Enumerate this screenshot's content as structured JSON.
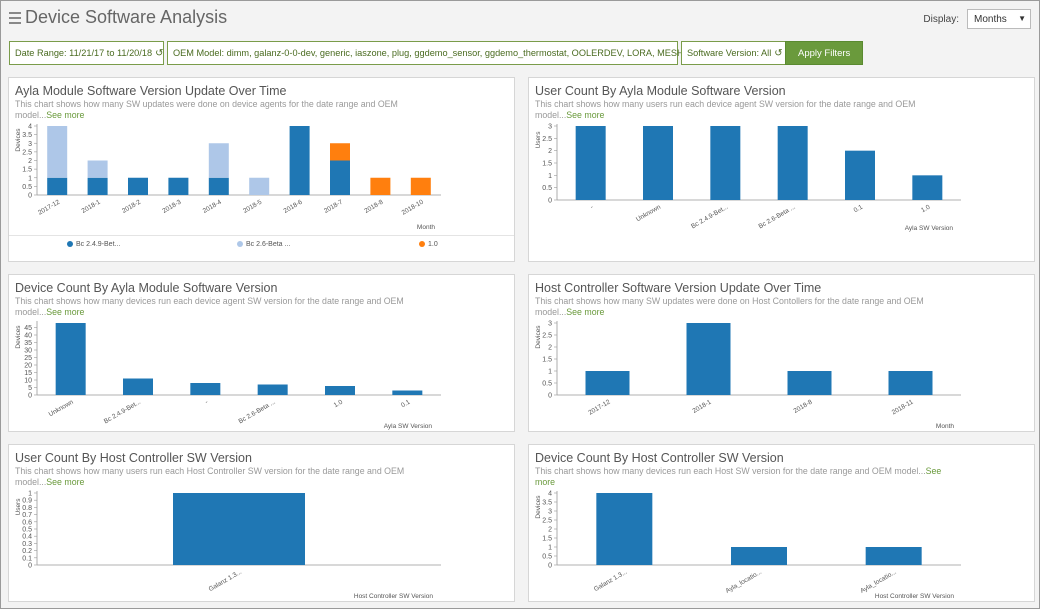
{
  "header": {
    "title": "Device Software Analysis",
    "display_label": "Display:",
    "display_value": "Months"
  },
  "filters": {
    "date_range": "Date Range: 11/21/17 to 11/20/18",
    "oem_model": "OEM Model: dimm, galanz-0-0-dev, generic, iaszone, plug, ggdemo_sensor, ggdemo_thermostat, OOLERDEV, LORA, MESH, stcv1",
    "software_version": "Software Version: All",
    "apply_label": "Apply Filters"
  },
  "colors": {
    "bar": "#1f77b4",
    "bar_light": "#aec7e8",
    "orange": "#ff7f0e",
    "accent": "#6a9a3c"
  },
  "panels": [
    {
      "title": "Ayla Module Software Version Update Over Time",
      "desc": "This chart shows how many SW updates were done on device agents for the date range and OEM model...",
      "see_more": "See more"
    },
    {
      "title": "User Count By Ayla Module Software Version",
      "desc": "This chart shows how many users run each device agent SW version for the date range and OEM model...",
      "see_more": "See more"
    },
    {
      "title": "Device Count By Ayla Module Software Version",
      "desc": "This chart shows how many devices run each device agent SW version for the date range and OEM model...",
      "see_more": "See more"
    },
    {
      "title": "Host Controller Software Version Update Over Time",
      "desc": "This chart shows how many SW updates were done on Host Contollers for the date range and OEM model...",
      "see_more": "See more"
    },
    {
      "title": "User Count By Host Controller SW Version",
      "desc": "This chart shows how many users run each Host Controller SW version for the date range and OEM model...",
      "see_more": "See more"
    },
    {
      "title": "Device Count By Host Controller SW Version",
      "desc": "This chart shows how many devices run each Host SW version for the date range and OEM model...",
      "see_more": "See more"
    }
  ],
  "chart_data": [
    {
      "type": "bar",
      "stacked": true,
      "categories": [
        "2017-12",
        "2018-1",
        "2018-2",
        "2018-3",
        "2018-4",
        "2018-5",
        "2018-6",
        "2018-7",
        "2018-8",
        "2018-10"
      ],
      "series": [
        {
          "name": "Bc 2.4.9-Bet...",
          "color": "#1f77b4",
          "values": [
            1,
            1,
            1,
            1,
            1,
            0,
            4,
            2,
            0,
            0
          ]
        },
        {
          "name": "Bc 2.6-Beta ...",
          "color": "#aec7e8",
          "values": [
            3,
            1,
            0,
            0,
            2,
            1,
            0,
            0,
            0,
            0
          ]
        },
        {
          "name": "1.0",
          "color": "#ff7f0e",
          "values": [
            0,
            0,
            0,
            0,
            0,
            0,
            0,
            1,
            1,
            1
          ]
        }
      ],
      "ylabel": "Devices",
      "xlabel": "Month",
      "yticks": [
        "0",
        "0.5",
        "1",
        "1.5",
        "2",
        "2.5",
        "3",
        "3.5",
        "4"
      ],
      "ylim": [
        0,
        4
      ]
    },
    {
      "type": "bar",
      "categories": [
        "-",
        "Unknown",
        "Bc 2.4.9-Bet...",
        "Bc 2.6-Beta ...",
        "0.1",
        "1.0"
      ],
      "values": [
        3,
        3,
        3,
        3,
        2,
        1
      ],
      "ylabel": "Users",
      "xlabel": "Ayla SW Version",
      "yticks": [
        "0",
        "0.5",
        "1",
        "1.5",
        "2",
        "2.5",
        "3"
      ],
      "ylim": [
        0,
        3
      ]
    },
    {
      "type": "bar",
      "categories": [
        "Unknown",
        "Bc 2.4.9-Bet...",
        "-",
        "Bc 2.6-Beta ...",
        "1.0",
        "0.1"
      ],
      "values": [
        48,
        11,
        8,
        7,
        6,
        3
      ],
      "ylabel": "Devices",
      "xlabel": "Ayla SW Version",
      "yticks": [
        "0",
        "5",
        "10",
        "15",
        "20",
        "25",
        "30",
        "35",
        "40",
        "45"
      ],
      "ylim": [
        0,
        48
      ]
    },
    {
      "type": "bar",
      "categories": [
        "2017-12",
        "2018-1",
        "2018-8",
        "2018-11"
      ],
      "values": [
        1,
        3,
        1,
        1
      ],
      "ylabel": "Devices",
      "xlabel": "Month",
      "yticks": [
        "0",
        "0.5",
        "1",
        "1.5",
        "2",
        "2.5",
        "3"
      ],
      "ylim": [
        0,
        3
      ]
    },
    {
      "type": "bar",
      "categories": [
        "Galanz 1.3..."
      ],
      "values": [
        1
      ],
      "ylabel": "Users",
      "xlabel": "Host Controller SW Version",
      "yticks": [
        "0",
        "0.1",
        "0.2",
        "0.3",
        "0.4",
        "0.5",
        "0.6",
        "0.7",
        "0.8",
        "0.9",
        "1"
      ],
      "ylim": [
        0,
        1
      ]
    },
    {
      "type": "bar",
      "categories": [
        "Galanz 1.3...",
        "Ayla_locatio...",
        "Ayla_locatio..."
      ],
      "values": [
        4,
        1,
        1
      ],
      "ylabel": "Devices",
      "xlabel": "Host Controller SW Version",
      "yticks": [
        "0",
        "0.5",
        "1",
        "1.5",
        "2",
        "2.5",
        "3",
        "3.5",
        "4"
      ],
      "ylim": [
        0,
        4
      ]
    }
  ]
}
